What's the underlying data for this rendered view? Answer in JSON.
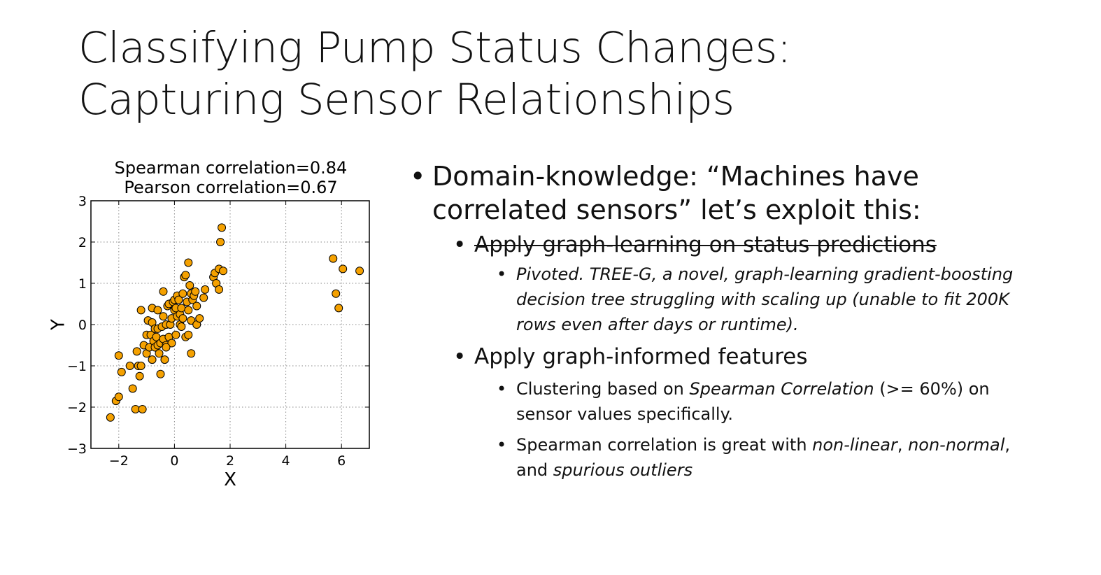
{
  "slide": {
    "title_line1": "Classifying Pump Status Changes:",
    "title_line2": "Capturing Sensor Relationships"
  },
  "bullets": {
    "main_pre": "Domain-knowledge: “Machines have",
    "main_post": "correlated sensors” let’s exploit this:",
    "struck_item": "Apply graph-learning on status predictions",
    "pivot_text": "Pivoted. TREE-G, a novel, graph-learning gradient-boosting decision tree struggling with scaling up (unable to fit 200K rows even after days or runtime).",
    "graph_features": "Apply graph-informed features",
    "clustering_a": "Clustering based on ",
    "clustering_b": "Spearman Correlation",
    "clustering_c": " (>= 60%) on sensor values specifically.",
    "spearman_a": "Spearman correlation is great with ",
    "spearman_b": "non-linear",
    "spearman_c": ", ",
    "spearman_d": "non-normal",
    "spearman_e": ", and ",
    "spearman_f": "spurious outliers"
  },
  "chart_data": {
    "type": "scatter",
    "title_line1": "Spearman correlation=0.84",
    "title_line2": "Pearson correlation=0.67",
    "xlabel": "X",
    "ylabel": "Y",
    "xlim": [
      -3,
      7
    ],
    "ylim": [
      -3,
      3
    ],
    "xticks": [
      -2,
      0,
      2,
      4,
      6
    ],
    "xtick_labels": [
      "−2",
      "0",
      "2",
      "4",
      "6"
    ],
    "yticks": [
      -3,
      -2,
      -1,
      0,
      1,
      2,
      3
    ],
    "ytick_labels": [
      "−3",
      "−2",
      "−1",
      "0",
      "1",
      "2",
      "3"
    ],
    "grid": true,
    "marker_color": "#f5a100",
    "marker_edge": "#000000",
    "x": [
      -2.3,
      -2.1,
      -2.0,
      -2.0,
      -1.9,
      -1.6,
      -1.5,
      -1.4,
      -1.35,
      -1.3,
      -1.25,
      -1.2,
      -1.15,
      -1.1,
      -1.0,
      -1.0,
      -0.95,
      -0.9,
      -0.85,
      -0.8,
      -0.8,
      -0.75,
      -0.7,
      -0.7,
      -0.65,
      -0.6,
      -0.6,
      -0.55,
      -0.5,
      -0.5,
      -0.45,
      -0.4,
      -0.4,
      -0.35,
      -0.3,
      -0.3,
      -0.25,
      -0.2,
      -0.2,
      -0.15,
      -0.1,
      -0.1,
      -0.05,
      0.0,
      0.0,
      0.05,
      0.1,
      0.1,
      0.15,
      0.2,
      0.2,
      0.25,
      0.3,
      0.3,
      0.35,
      0.4,
      0.45,
      0.5,
      0.5,
      0.55,
      0.6,
      0.6,
      0.65,
      0.7,
      0.75,
      0.8,
      0.8,
      0.9,
      1.05,
      1.1,
      1.4,
      1.45,
      1.5,
      1.6,
      1.6,
      1.65,
      1.7,
      1.75,
      -0.8,
      -0.4,
      0.4,
      0.5,
      0.6,
      -1.2,
      -0.3,
      0.05,
      -0.6,
      0.25,
      5.7,
      5.8,
      5.9,
      6.05,
      6.65
    ],
    "y": [
      -2.25,
      -1.85,
      -1.75,
      -0.75,
      -1.15,
      -1.0,
      -1.55,
      -2.05,
      -0.65,
      -1.0,
      -1.25,
      -1.0,
      -2.05,
      -0.5,
      -0.7,
      -0.25,
      0.1,
      -0.55,
      -0.25,
      0.05,
      -0.85,
      -0.4,
      -0.1,
      -0.55,
      -0.3,
      -0.1,
      -0.5,
      -0.7,
      -1.2,
      -0.45,
      -0.05,
      -0.35,
      0.8,
      -0.85,
      -0.5,
      0.0,
      0.45,
      -0.3,
      0.5,
      0.0,
      0.15,
      -0.45,
      0.55,
      0.35,
      0.6,
      0.4,
      0.2,
      0.7,
      0.6,
      0.25,
      0.0,
      0.4,
      0.75,
      0.15,
      1.15,
      1.2,
      0.55,
      0.35,
      1.5,
      0.95,
      0.75,
      0.1,
      0.6,
      0.7,
      0.8,
      0.45,
      0.0,
      0.15,
      0.65,
      0.85,
      1.15,
      1.25,
      1.0,
      0.85,
      1.35,
      2.0,
      2.35,
      1.3,
      0.4,
      0.2,
      -0.3,
      -0.25,
      -0.7,
      0.35,
      -0.55,
      -0.25,
      0.35,
      -0.05,
      1.6,
      0.75,
      0.4,
      1.35,
      1.3
    ]
  }
}
